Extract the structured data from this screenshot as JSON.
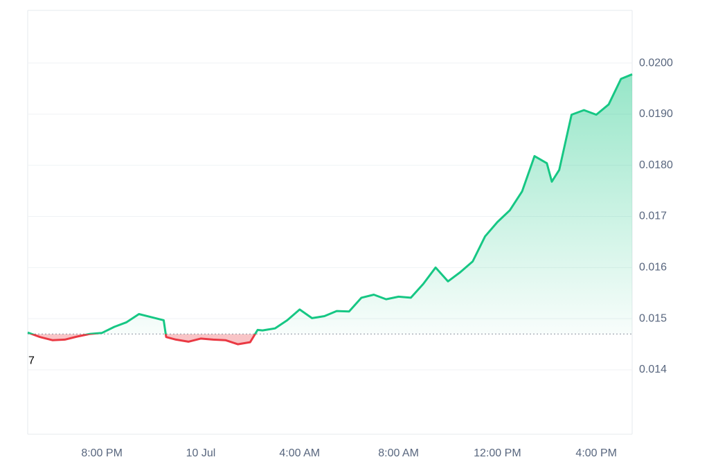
{
  "chart_data": {
    "type": "line",
    "x": [
      17,
      17.5,
      18,
      18.5,
      19,
      19.5,
      20,
      20.5,
      21,
      21.5,
      22,
      22.5,
      22.6,
      23,
      23.5,
      24,
      24.5,
      25,
      25.5,
      26,
      26.3,
      26.5,
      27,
      27.5,
      28,
      28.5,
      29,
      29.5,
      30,
      30.5,
      31,
      31.5,
      32,
      32.5,
      33,
      33.5,
      34,
      34.5,
      35,
      35.5,
      36,
      36.5,
      37,
      37.5,
      38,
      38.2,
      38.5,
      39,
      39.5,
      40,
      40.5,
      41,
      41.45
    ],
    "values": [
      0.01473,
      0.01464,
      0.01458,
      0.01459,
      0.01465,
      0.0147,
      0.01472,
      0.01484,
      0.01493,
      0.01509,
      0.01503,
      0.01497,
      0.01464,
      0.01459,
      0.01455,
      0.01461,
      0.01459,
      0.01458,
      0.0145,
      0.01454,
      0.01478,
      0.01477,
      0.01481,
      0.01497,
      0.01518,
      0.01501,
      0.01505,
      0.01515,
      0.01514,
      0.01541,
      0.01547,
      0.01538,
      0.01543,
      0.01541,
      0.01568,
      0.016,
      0.01573,
      0.01591,
      0.01612,
      0.01661,
      0.01689,
      0.01712,
      0.01749,
      0.01818,
      0.01804,
      0.01768,
      0.01791,
      0.01899,
      0.01908,
      0.01899,
      0.01919,
      0.01969,
      0.01978
    ],
    "baseline": 0.0147,
    "baseline_label": "7",
    "up_color": "#16c784",
    "down_color": "#ea3943",
    "xlim": [
      17,
      41.45
    ],
    "xticks": [
      {
        "value": 20,
        "label": "8:00 PM"
      },
      {
        "value": 24,
        "label": "10 Jul"
      },
      {
        "value": 28,
        "label": "4:00 AM"
      },
      {
        "value": 32,
        "label": "8:00 AM"
      },
      {
        "value": 36,
        "label": "12:00 PM"
      },
      {
        "value": 40,
        "label": "4:00 PM"
      }
    ],
    "ylim": [
      0.01274,
      0.02103
    ],
    "yticks": [
      {
        "value": 0.02,
        "label": "0.0200"
      },
      {
        "value": 0.019,
        "label": "0.0190"
      },
      {
        "value": 0.018,
        "label": "0.0180"
      },
      0.017,
      0.016,
      0.015,
      0.014
    ],
    "grid": true
  }
}
